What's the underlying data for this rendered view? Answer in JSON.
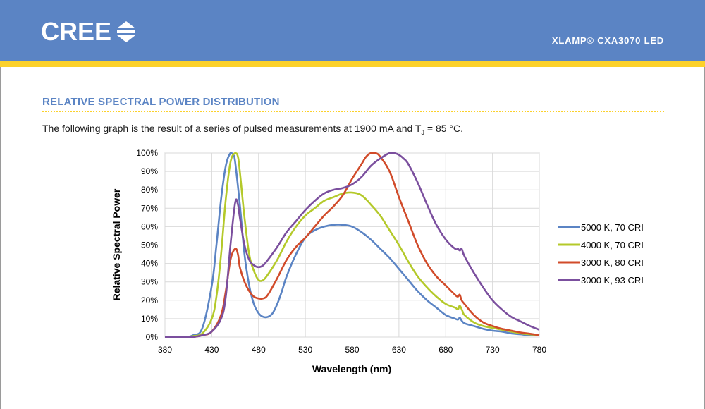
{
  "header": {
    "logo_text": "CREE",
    "document_title": "XLAMP® CXA3070 LED",
    "brand_color": "#5b84c4",
    "stripe_color": "#fcd12a"
  },
  "section": {
    "title": "RELATIVE SPECTRAL POWER DISTRIBUTION",
    "description_before": "The following graph is the result of a series of pulsed measurements at 1900 mA and T",
    "description_sub": "J",
    "description_after": " = 85 °C."
  },
  "chart_data": {
    "type": "line",
    "title": "",
    "xlabel": "Wavelength (nm)",
    "ylabel": "Relative Spectral Power",
    "xlim": [
      380,
      780
    ],
    "ylim": [
      0,
      100
    ],
    "x_ticks": [
      380,
      430,
      480,
      530,
      580,
      630,
      680,
      730,
      780
    ],
    "y_ticks": [
      0,
      10,
      20,
      30,
      40,
      50,
      60,
      70,
      80,
      90,
      100
    ],
    "y_tick_suffix": "%",
    "grid": true,
    "legend_position": "right",
    "series": [
      {
        "name": "5000 K, 70 CRI",
        "color": "#5b84c4",
        "x": [
          380,
          400,
          410,
          420,
          430,
          435,
          440,
          445,
          450,
          453,
          455,
          460,
          465,
          470,
          475,
          480,
          485,
          490,
          495,
          500,
          505,
          510,
          520,
          530,
          540,
          550,
          560,
          570,
          580,
          590,
          600,
          610,
          620,
          630,
          640,
          650,
          660,
          670,
          680,
          690,
          693,
          695,
          697,
          700,
          710,
          720,
          730,
          740,
          750,
          760,
          770,
          780
        ],
        "y": [
          0,
          0,
          1,
          5,
          28,
          50,
          75,
          93,
          100,
          99,
          95,
          72,
          45,
          28,
          18,
          13,
          11,
          11,
          13,
          18,
          25,
          33,
          45,
          54,
          58,
          60,
          61,
          61,
          60,
          57,
          53,
          48,
          43,
          37,
          31,
          25,
          20,
          16,
          12,
          10,
          9.5,
          10.5,
          9,
          7.5,
          6,
          4.5,
          3.5,
          3,
          2,
          1.5,
          1,
          1
        ]
      },
      {
        "name": "4000 K, 70 CRI",
        "color": "#b4c92a",
        "x": [
          380,
          400,
          410,
          420,
          430,
          435,
          440,
          445,
          450,
          455,
          458,
          460,
          465,
          470,
          475,
          480,
          485,
          490,
          500,
          510,
          520,
          530,
          540,
          550,
          560,
          570,
          580,
          590,
          600,
          610,
          620,
          630,
          640,
          650,
          660,
          670,
          680,
          690,
          693,
          695,
          698,
          700,
          710,
          720,
          730,
          740,
          750,
          760,
          770,
          780
        ],
        "y": [
          0,
          0,
          0.5,
          2,
          10,
          22,
          45,
          75,
          95,
          100,
          98,
          90,
          65,
          45,
          36,
          31,
          31,
          34,
          42,
          52,
          60,
          66,
          70,
          74,
          76,
          78,
          78.5,
          77,
          72,
          66,
          58,
          50,
          41,
          33,
          27,
          22,
          18,
          16,
          15,
          17,
          14,
          12,
          8,
          6,
          5,
          4,
          3,
          2,
          1.5,
          1
        ]
      },
      {
        "name": "3000 K, 80 CRI",
        "color": "#d14b2a",
        "x": [
          380,
          400,
          410,
          420,
          430,
          440,
          445,
          450,
          455,
          458,
          460,
          465,
          470,
          475,
          480,
          485,
          490,
          500,
          510,
          520,
          530,
          540,
          550,
          560,
          570,
          580,
          590,
          595,
          600,
          605,
          610,
          620,
          630,
          640,
          650,
          660,
          670,
          680,
          690,
          693,
          695,
          697,
          700,
          710,
          720,
          730,
          740,
          750,
          760,
          770,
          780
        ],
        "y": [
          0,
          0,
          0,
          1,
          3,
          12,
          25,
          42,
          48,
          45,
          38,
          30,
          25,
          22,
          21,
          21,
          23,
          32,
          42,
          49,
          54,
          60,
          66,
          71,
          77,
          86,
          94,
          98,
          100,
          100,
          98,
          90,
          76,
          63,
          50,
          40,
          33,
          28,
          23,
          22,
          23,
          20,
          18,
          12,
          8,
          6,
          4.5,
          3.5,
          2.5,
          1.8,
          1
        ]
      },
      {
        "name": "3000 K, 93 CRI",
        "color": "#7b4f9e",
        "x": [
          380,
          400,
          410,
          420,
          430,
          440,
          445,
          450,
          455,
          458,
          460,
          465,
          470,
          475,
          480,
          485,
          490,
          500,
          510,
          520,
          530,
          540,
          550,
          560,
          570,
          580,
          590,
          600,
          610,
          620,
          625,
          630,
          635,
          640,
          650,
          660,
          670,
          680,
          690,
          693,
          695,
          697,
          700,
          710,
          720,
          730,
          740,
          750,
          760,
          770,
          780
        ],
        "y": [
          0,
          0,
          0,
          1,
          3,
          10,
          22,
          50,
          73,
          72,
          65,
          50,
          42,
          39,
          38,
          39,
          42,
          49,
          57,
          63,
          69,
          74,
          78,
          80,
          81,
          83,
          87,
          93,
          97,
          100,
          100,
          99,
          97,
          94,
          84,
          72,
          61,
          53,
          48,
          48,
          47,
          48,
          44,
          35,
          27,
          20,
          15,
          11,
          8.5,
          6,
          4
        ]
      }
    ]
  }
}
